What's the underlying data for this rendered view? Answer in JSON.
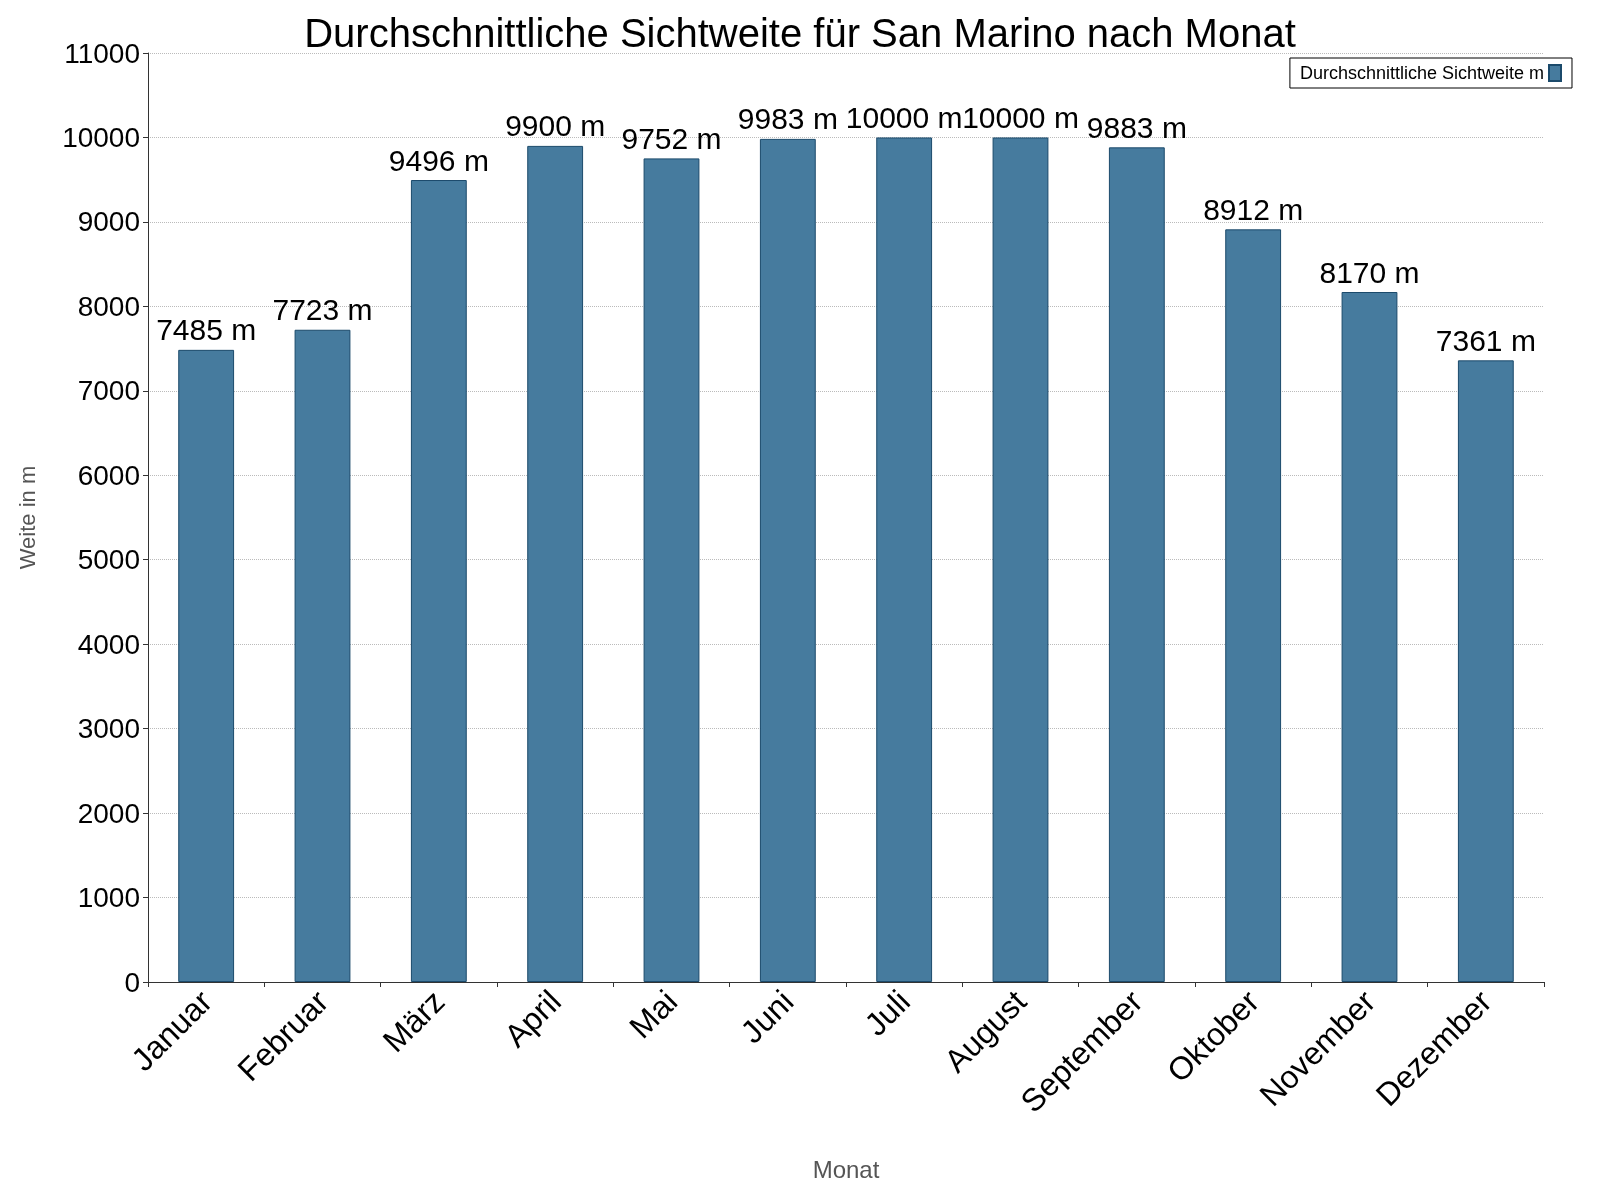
{
  "chart_data": {
    "type": "bar",
    "title": "Durchschnittliche Sichtweite für San Marino nach Monat",
    "xlabel": "Monat",
    "ylabel": "Weite in m",
    "categories": [
      "Januar",
      "Februar",
      "März",
      "April",
      "Mai",
      "Juni",
      "Juli",
      "August",
      "September",
      "Oktober",
      "November",
      "Dezember"
    ],
    "series": [
      {
        "name": "Durchschnittliche Sichtweite m",
        "color": "#467b9e",
        "values": [
          7485,
          7723,
          9496,
          9900,
          9752,
          9983,
          10000,
          10000,
          9883,
          8912,
          8170,
          7361
        ],
        "value_labels": [
          "7485 m",
          "7723 m",
          "9496 m",
          "9900 m",
          "9752 m",
          "9983 m",
          "10000 m",
          "10000 m",
          "9883 m",
          "8912 m",
          "8170 m",
          "7361 m"
        ]
      }
    ],
    "ylim": [
      0,
      11000
    ],
    "yticks": [
      0,
      1000,
      2000,
      3000,
      4000,
      5000,
      6000,
      7000,
      8000,
      9000,
      10000,
      11000
    ],
    "grid": "y",
    "legend": "top right"
  }
}
